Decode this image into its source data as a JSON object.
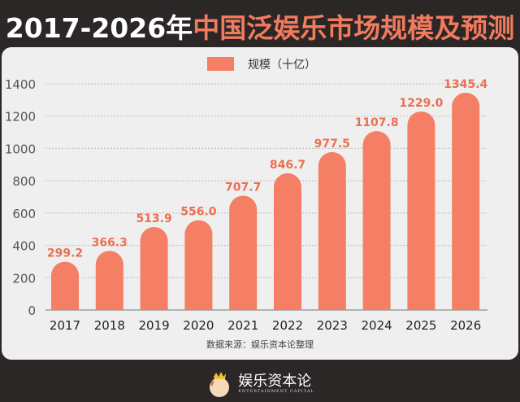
{
  "header": {
    "title_white": "2017-2026年",
    "title_orange": "中国泛娱乐市场规模及预测"
  },
  "source": "数据来源：娱乐资本论整理",
  "logo": {
    "name": "娱乐资本论",
    "subtitle": "ENTERTAINMENT CAPITAL"
  },
  "colors": {
    "bar": "#f47f64",
    "label": "#ec6f52",
    "background": "#2a2726",
    "card": "#efefef"
  },
  "chart_data": {
    "type": "bar",
    "title": "2017-2026年中国泛娱乐市场规模及预测",
    "categories": [
      "2017",
      "2018",
      "2019",
      "2020",
      "2021",
      "2022",
      "2023",
      "2024",
      "2025",
      "2026"
    ],
    "series": [
      {
        "name": "规模（十亿）",
        "values": [
          299.2,
          366.3,
          513.9,
          556.0,
          707.7,
          846.7,
          977.5,
          1107.8,
          1229.0,
          1345.4
        ]
      }
    ],
    "value_labels": [
      "299.2",
      "366.3",
      "513.9",
      "556.0",
      "707.7",
      "846.7",
      "977.5",
      "1107.8",
      "1229.0",
      "1345.4"
    ],
    "yticks": [
      0,
      200,
      400,
      600,
      800,
      1000,
      1200,
      1400
    ],
    "ylim": [
      0,
      1400
    ],
    "grid": true,
    "legend": "top-center"
  }
}
